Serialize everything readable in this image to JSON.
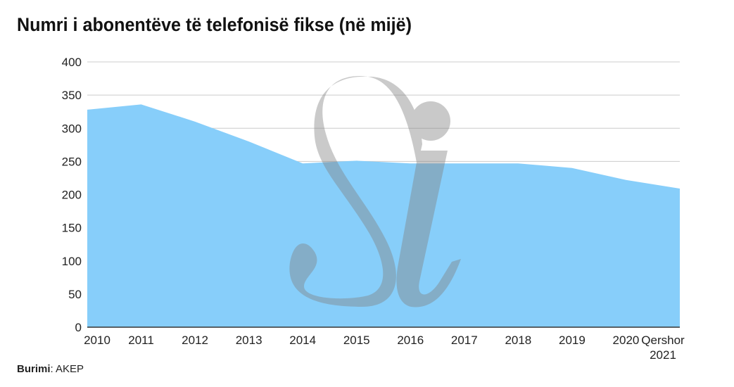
{
  "colors": {
    "area": "#87cefa",
    "grid": "#cccccc",
    "axis": "#333333",
    "watermark": "#808080"
  },
  "watermark": {
    "icon": "si-logo-watermark"
  },
  "chart_data": {
    "type": "area",
    "title": "Numri i abonentëve të telefonisë fikse (në mijë)",
    "categories": [
      "2010",
      "2011",
      "2012",
      "2013",
      "2014",
      "2015",
      "2016",
      "2017",
      "2018",
      "2019",
      "2020",
      "Qershor 2021"
    ],
    "series": [
      {
        "values": [
          328,
          336,
          310,
          280,
          247,
          251,
          247,
          247,
          247,
          240,
          222,
          209
        ]
      }
    ],
    "ylim": [
      0,
      400
    ],
    "yticks": [
      0,
      50,
      100,
      150,
      200,
      250,
      300,
      350,
      400
    ],
    "grid": true,
    "legend": "none"
  },
  "source": {
    "label": "Burimi",
    "value": "AKEP"
  }
}
